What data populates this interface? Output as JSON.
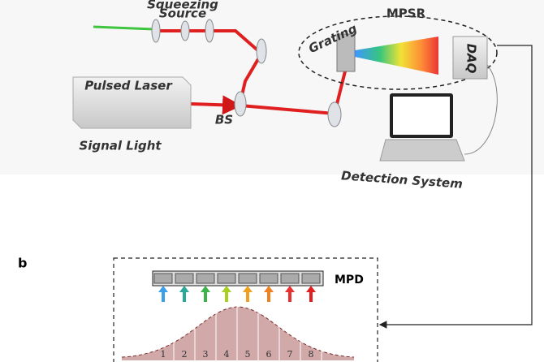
{
  "setup": {
    "squeezing_source": [
      "Squeezing",
      "Source"
    ],
    "mpsr": "MPSR",
    "grating": "Grating",
    "daq": "DAQ",
    "pulsed_laser": "Pulsed Laser",
    "bs": "BS",
    "signal_light": "Signal Light",
    "detection_system": "Detection System"
  },
  "panel_b": {
    "label": "b",
    "mpd": "MPD",
    "channels": [
      1,
      2,
      3,
      4,
      5,
      6,
      7,
      8
    ]
  }
}
